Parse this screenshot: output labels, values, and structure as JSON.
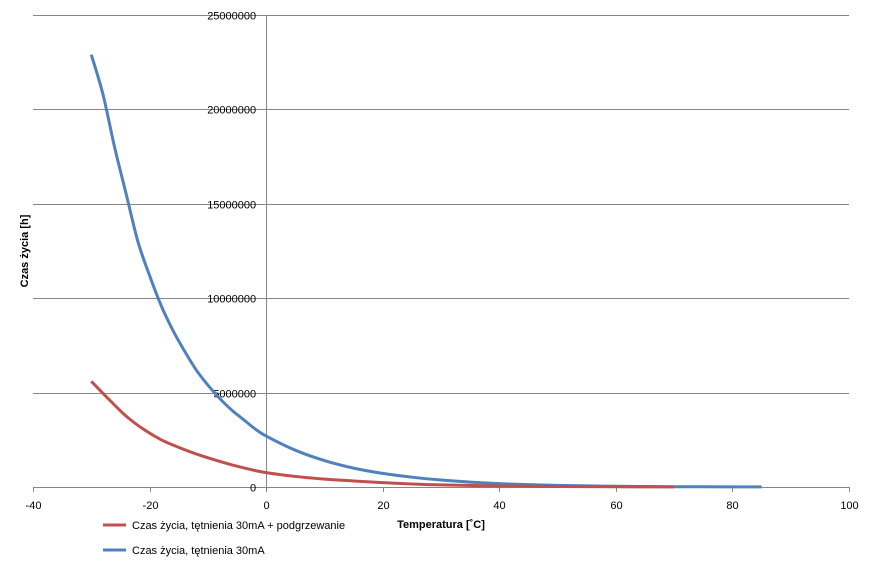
{
  "chart_data": {
    "type": "line",
    "title": "",
    "xlabel": "Temperatura [˚C]",
    "ylabel": "Czas życia  [h]",
    "xlim": [
      -40,
      100
    ],
    "ylim": [
      0,
      25000000
    ],
    "xticks": [
      -40,
      -20,
      0,
      20,
      40,
      60,
      80,
      100
    ],
    "yticks": [
      0,
      5000000,
      10000000,
      15000000,
      20000000,
      25000000
    ],
    "grid": {
      "horizontal": true,
      "vertical": false
    },
    "legend_position": "bottom-left",
    "series": [
      {
        "name": "Czas życia, tętnienia 30mA + podgrzewanie",
        "color": "#C0504D",
        "x": [
          -30,
          -27,
          -24,
          -21,
          -18,
          -15,
          -12,
          -9,
          -6,
          -3,
          0,
          5,
          10,
          15,
          20,
          25,
          30,
          40,
          50,
          60,
          70
        ],
        "y": [
          5600000,
          4650000,
          3750000,
          3050000,
          2500000,
          2100000,
          1750000,
          1450000,
          1180000,
          950000,
          760000,
          560000,
          420000,
          320000,
          230000,
          160000,
          110000,
          55000,
          25000,
          10000,
          4000
        ]
      },
      {
        "name": "Czas życia, tętnienia 30mA",
        "color": "#4F81BD",
        "x": [
          -30,
          -28,
          -26,
          -24,
          -22,
          -20,
          -18,
          -16,
          -14,
          -12,
          -10,
          -8,
          -6,
          -4,
          -2,
          0,
          5,
          10,
          15,
          20,
          25,
          30,
          35,
          40,
          45,
          50,
          55,
          60,
          65,
          70,
          75,
          80,
          85
        ],
        "y": [
          22900000,
          20800000,
          18000000,
          15500000,
          13000000,
          11200000,
          9600000,
          8300000,
          7200000,
          6200000,
          5400000,
          4700000,
          4100000,
          3600000,
          3100000,
          2700000,
          1950000,
          1400000,
          1000000,
          720000,
          520000,
          370000,
          260000,
          180000,
          125000,
          85000,
          57000,
          38000,
          25000,
          16000,
          10000,
          6000,
          3500
        ]
      }
    ]
  }
}
